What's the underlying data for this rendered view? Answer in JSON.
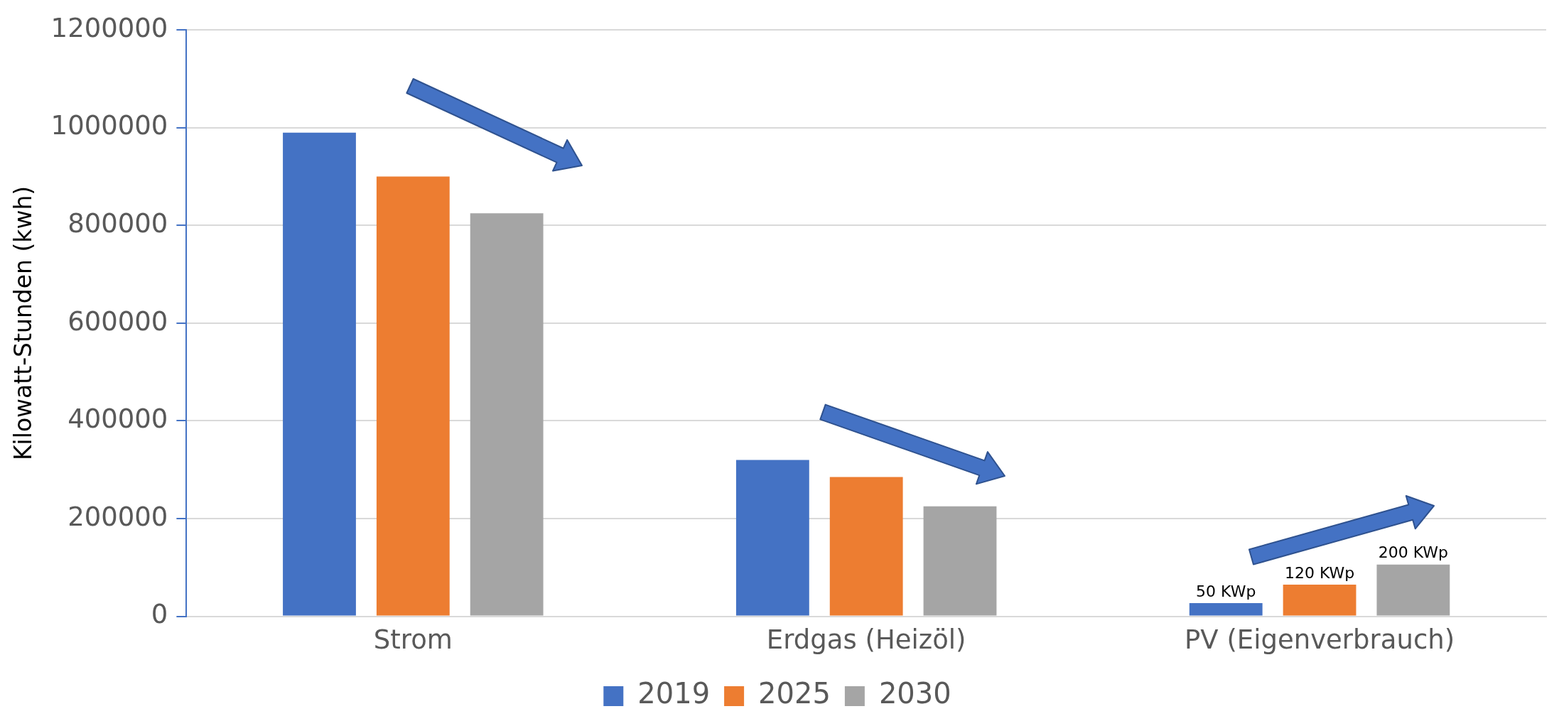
{
  "chart_data": {
    "type": "bar",
    "ylabel": "Kilowatt-Stunden (kwh)",
    "categories": [
      "Strom",
      "Erdgas (Heizöl)",
      "PV (Eigenverbrauch)"
    ],
    "series": [
      {
        "name": "2019",
        "color": "#4472c4",
        "values": [
          990000,
          320000,
          27000
        ]
      },
      {
        "name": "2025",
        "color": "#ed7d31",
        "values": [
          900000,
          285000,
          65000
        ]
      },
      {
        "name": "2030",
        "color": "#a5a5a5",
        "values": [
          825000,
          225000,
          106000
        ]
      }
    ],
    "annotations": [
      "50 KWp",
      "120 KWp",
      "200 KWp"
    ],
    "ylim": [
      0,
      1200000
    ],
    "yticks": [
      0,
      200000,
      400000,
      600000,
      800000,
      1000000,
      1200000
    ],
    "grid": "y",
    "legend": "bottom"
  }
}
